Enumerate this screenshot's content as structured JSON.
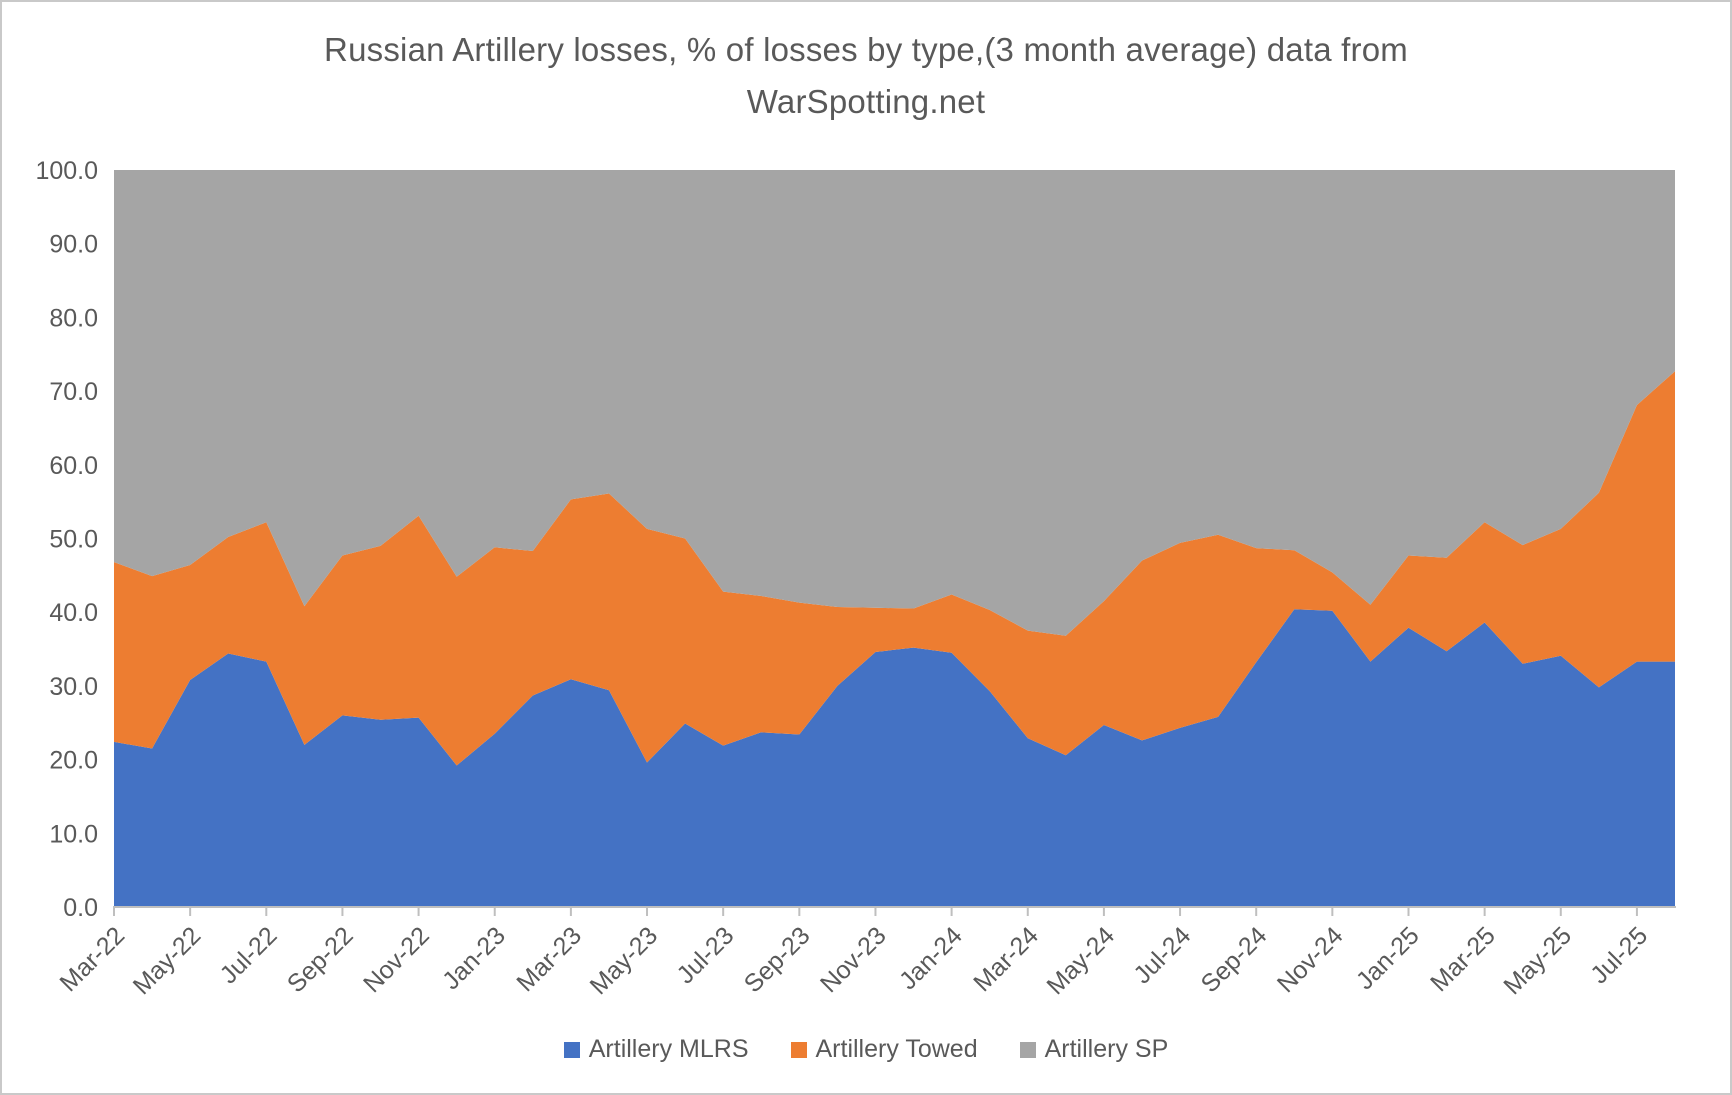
{
  "title": {
    "line1": "Russian Artillery losses, % of losses by type,(3 month average) data from",
    "line2": "WarSpotting.net",
    "full": "Russian Artillery losses, % of losses by type,(3 month average) data from WarSpotting.net"
  },
  "colors": {
    "mlrs_blue": "#4472C4",
    "towed_orange": "#ED7D31",
    "sp_gray": "#A5A5A5",
    "text_gray": "#595959",
    "axis_gray": "#BFBFBF",
    "background": "#FFFFFF"
  },
  "chart_data": {
    "type": "area",
    "stacked": true,
    "title": "Russian Artillery losses, % of losses by type,(3 month average) data from WarSpotting.net",
    "xlabel": "",
    "ylabel": "",
    "ylim": [
      0,
      100
    ],
    "grid": false,
    "legend_position": "bottom",
    "y_tick_labels": [
      "0.0",
      "10.0",
      "20.0",
      "30.0",
      "40.0",
      "50.0",
      "60.0",
      "70.0",
      "80.0",
      "90.0",
      "100.0"
    ],
    "x_label_every": 2,
    "x": [
      "Mar-22",
      "Apr-22",
      "May-22",
      "Jun-22",
      "Jul-22",
      "Aug-22",
      "Sep-22",
      "Oct-22",
      "Nov-22",
      "Dec-22",
      "Jan-23",
      "Feb-23",
      "Mar-23",
      "Apr-23",
      "May-23",
      "Jun-23",
      "Jul-23",
      "Aug-23",
      "Sep-23",
      "Oct-23",
      "Nov-23",
      "Dec-23",
      "Jan-24",
      "Feb-24",
      "Mar-24",
      "Apr-24",
      "May-24",
      "Jun-24",
      "Jul-24",
      "Aug-24",
      "Sep-24",
      "Oct-24",
      "Nov-24",
      "Dec-24",
      "Jan-25",
      "Feb-25",
      "Mar-25",
      "Apr-25",
      "May-25",
      "Jun-25",
      "Jul-25",
      "Aug-25"
    ],
    "series": [
      {
        "name": "Artillery MLRS",
        "color": "#4472C4",
        "values": [
          22.4,
          21.5,
          30.8,
          34.4,
          33.3,
          22.0,
          26.0,
          25.4,
          25.7,
          19.2,
          23.5,
          28.7,
          30.9,
          29.4,
          19.6,
          24.9,
          21.9,
          23.7,
          23.4,
          30.0,
          34.6,
          35.2,
          34.5,
          29.3,
          22.9,
          20.6,
          24.7,
          22.6,
          24.3,
          25.8,
          33.2,
          40.4,
          40.2,
          33.3,
          37.9,
          34.7,
          38.6,
          33.0,
          34.1,
          29.8,
          33.3,
          33.3
        ]
      },
      {
        "name": "Artillery Towed",
        "color": "#ED7D31",
        "values": [
          24.4,
          23.4,
          15.6,
          15.8,
          18.9,
          18.8,
          21.7,
          23.6,
          27.4,
          25.6,
          25.3,
          19.6,
          24.4,
          26.7,
          31.7,
          25.1,
          20.9,
          18.5,
          17.9,
          10.7,
          6.0,
          5.3,
          7.9,
          11.0,
          14.6,
          16.2,
          16.8,
          24.4,
          25.1,
          24.7,
          15.5,
          8.0,
          5.2,
          7.7,
          9.8,
          12.7,
          13.6,
          16.1,
          17.2,
          26.4,
          34.8,
          39.4
        ]
      },
      {
        "name": "Artillery SP",
        "color": "#A5A5A5",
        "values": [
          53.2,
          55.1,
          53.6,
          49.8,
          47.8,
          59.2,
          52.3,
          51.0,
          46.9,
          55.2,
          51.2,
          51.7,
          44.7,
          43.9,
          48.7,
          50.0,
          57.2,
          57.8,
          58.7,
          59.3,
          59.4,
          59.5,
          57.6,
          59.7,
          62.5,
          63.2,
          58.5,
          53.0,
          50.6,
          49.5,
          51.3,
          51.6,
          54.6,
          59.0,
          52.3,
          52.6,
          47.8,
          50.9,
          48.7,
          43.8,
          31.9,
          27.3
        ]
      }
    ]
  }
}
